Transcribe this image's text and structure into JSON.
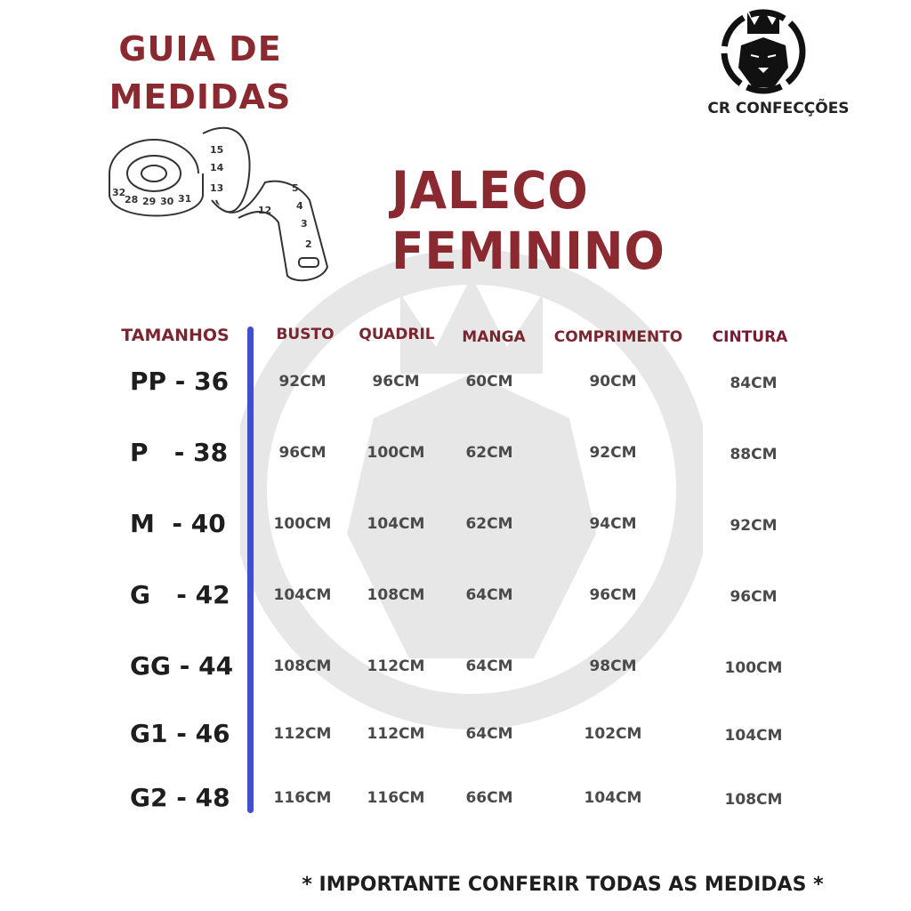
{
  "guide_title": [
    "GUIA DE",
    "MEDIDAS"
  ],
  "brand": {
    "name": "CR CONFECÇÕES",
    "logo_icon": "crowned-lion-icon"
  },
  "product_title": "JALECO FEMININO",
  "colors": {
    "title": "#8a2a30",
    "header": "#7a2630",
    "divider": "#3e4fcf",
    "values": "#4a4a4a"
  },
  "table": {
    "headers": [
      "TAMANHOS",
      "BUSTO",
      "QUADRIL",
      "MANGA",
      "COMPRIMENTO",
      "CINTURA"
    ],
    "rows": [
      {
        "size": "PP - 36",
        "values": [
          "92CM",
          "96CM",
          "60CM",
          "90CM",
          "84CM"
        ]
      },
      {
        "size": "P   - 38",
        "values": [
          "96CM",
          "100CM",
          "62CM",
          "92CM",
          "88CM"
        ]
      },
      {
        "size": "M  - 40",
        "values": [
          "100CM",
          "104CM",
          "62CM",
          "94CM",
          "92CM"
        ]
      },
      {
        "size": "G   - 42",
        "values": [
          "104CM",
          "108CM",
          "64CM",
          "96CM",
          "96CM"
        ]
      },
      {
        "size": "GG - 44",
        "values": [
          "108CM",
          "112CM",
          "64CM",
          "98CM",
          "100CM"
        ]
      },
      {
        "size": "G1 - 46",
        "values": [
          "112CM",
          "112CM",
          "64CM",
          "102CM",
          "104CM"
        ]
      },
      {
        "size": "G2 - 48",
        "values": [
          "116CM",
          "116CM",
          "66CM",
          "104CM",
          "108CM"
        ]
      }
    ]
  },
  "tape_numbers": [
    "32",
    "28",
    "29",
    "30",
    "31",
    "15",
    "14",
    "13",
    "12",
    "5",
    "4",
    "3",
    "2"
  ],
  "footer_note": "* IMPORTANTE CONFERIR TODAS AS MEDIDAS *"
}
